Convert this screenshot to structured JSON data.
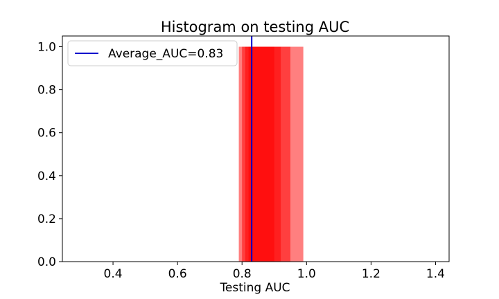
{
  "chart_data": {
    "type": "bar",
    "title": "Histogram on testing AUC",
    "xlabel": "Testing AUC",
    "ylabel": "",
    "xlim": [
      0.243,
      1.442
    ],
    "ylim": [
      0.0,
      1.05
    ],
    "x_ticks": [
      0.4,
      0.6,
      0.8,
      1.0,
      1.2,
      1.4
    ],
    "x_tick_labels": [
      "0.4",
      "0.6",
      "0.8",
      "1.0",
      "1.2",
      "1.4"
    ],
    "y_ticks": [
      0.0,
      0.2,
      0.4,
      0.6,
      0.8,
      1.0
    ],
    "y_tick_labels": [
      "0.0",
      "0.2",
      "0.4",
      "0.6",
      "0.8",
      "1.0"
    ],
    "grid": false,
    "legend_position": "top-left",
    "bar_color": "#ff0000",
    "bar_opacity": 0.5,
    "bars": [
      {
        "x0": 0.79,
        "x1": 0.99,
        "height": 1.0
      },
      {
        "x0": 0.8,
        "x1": 0.95,
        "height": 1.0
      },
      {
        "x0": 0.81,
        "x1": 0.92,
        "height": 1.0
      },
      {
        "x0": 0.82,
        "x1": 0.9,
        "height": 1.0
      }
    ],
    "average_line": {
      "label": "Average_AUC=0.83",
      "x": 0.83,
      "color": "#0000cc"
    }
  }
}
